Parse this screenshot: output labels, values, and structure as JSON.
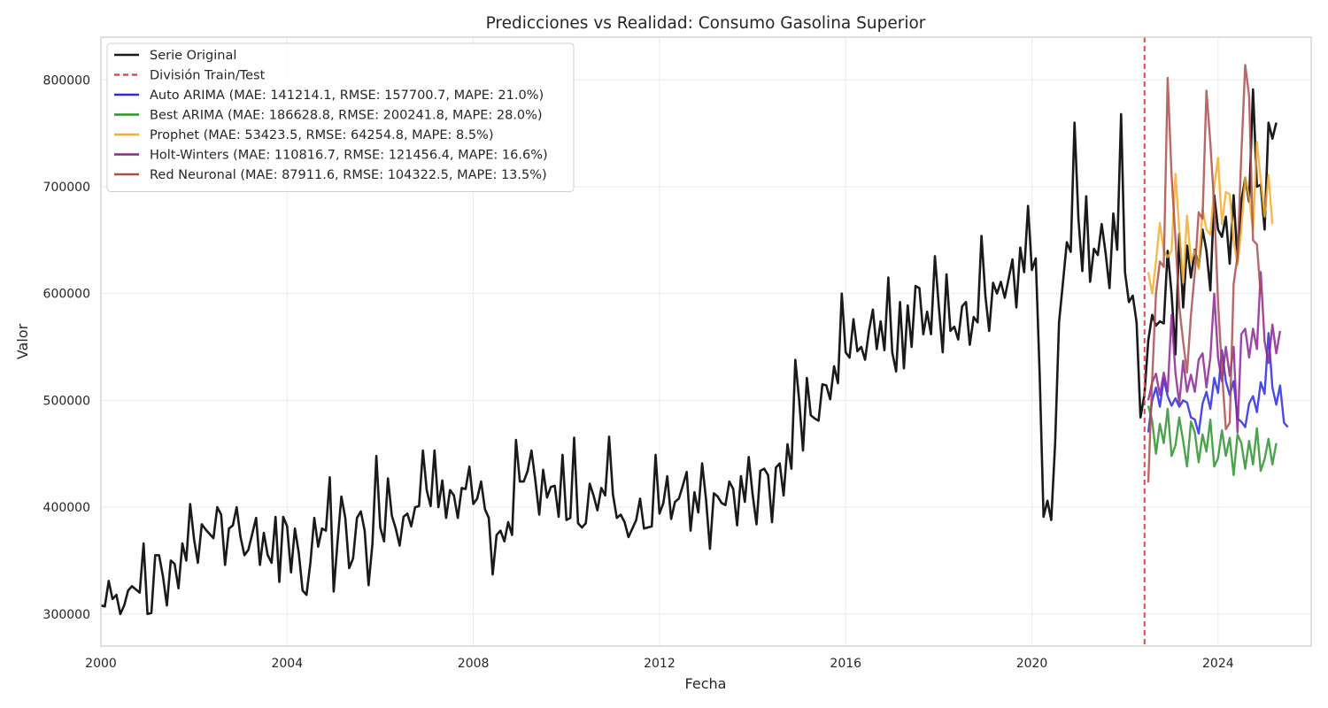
{
  "chart_data": {
    "type": "line",
    "title": "Predicciones vs Realidad: Consumo Gasolina Superior",
    "xlabel": "Fecha",
    "ylabel": "Valor",
    "xlim": [
      2000.0,
      2026.0
    ],
    "ylim": [
      270000,
      840000
    ],
    "x_ticks": [
      2000,
      2004,
      2008,
      2012,
      2016,
      2020,
      2024
    ],
    "y_ticks": [
      300000,
      400000,
      500000,
      600000,
      700000,
      800000
    ],
    "x_tick_labels": [
      "2000",
      "2004",
      "2008",
      "2012",
      "2016",
      "2020",
      "2024"
    ],
    "y_tick_labels": [
      "300000",
      "400000",
      "500000",
      "600000",
      "700000",
      "800000"
    ],
    "grid": true,
    "legend_position": "top-left",
    "split_line": {
      "label": "División Train/Test",
      "x": 2022.42,
      "color": "#e24a4a"
    },
    "series": [
      {
        "name": "Serie Original",
        "color": "#1a1a1a",
        "start": [
          2000,
          1
        ],
        "values": [
          308000,
          307000,
          331000,
          314000,
          318000,
          300000,
          308000,
          322000,
          326000,
          323000,
          320000,
          366000,
          300000,
          301000,
          355000,
          355000,
          335000,
          308000,
          350000,
          347000,
          324000,
          366000,
          350000,
          403000,
          370000,
          348000,
          384000,
          379000,
          375000,
          371000,
          400000,
          393000,
          346000,
          380000,
          383000,
          400000,
          372000,
          355000,
          360000,
          375000,
          390000,
          346000,
          376000,
          355000,
          348000,
          391000,
          330000,
          391000,
          382000,
          339000,
          380000,
          357000,
          322000,
          318000,
          348000,
          390000,
          363000,
          380000,
          378000,
          428000,
          321000,
          368000,
          410000,
          390000,
          343000,
          352000,
          390000,
          396000,
          378000,
          327000,
          366000,
          448000,
          381000,
          368000,
          427000,
          392000,
          380000,
          364000,
          391000,
          394000,
          382000,
          400000,
          401000,
          453000,
          416000,
          401000,
          453000,
          400000,
          425000,
          390000,
          416000,
          411000,
          390000,
          418000,
          417000,
          438000,
          403000,
          408000,
          424000,
          398000,
          390000,
          337000,
          374000,
          378000,
          368000,
          386000,
          374000,
          463000,
          424000,
          424000,
          434000,
          453000,
          425000,
          393000,
          435000,
          409000,
          419000,
          420000,
          391000,
          449000,
          388000,
          390000,
          465000,
          385000,
          381000,
          385000,
          422000,
          411000,
          397000,
          418000,
          411000,
          466000,
          412000,
          390000,
          393000,
          386000,
          372000,
          380000,
          388000,
          408000,
          380000,
          381000,
          382000,
          449000,
          394000,
          404000,
          429000,
          389000,
          405000,
          408000,
          420000,
          433000,
          378000,
          414000,
          395000,
          441000,
          407000,
          361000,
          413000,
          410000,
          404000,
          402000,
          424000,
          417000,
          383000,
          429000,
          405000,
          447000,
          412000,
          384000,
          434000,
          436000,
          430000,
          386000,
          437000,
          441000,
          411000,
          459000,
          436000,
          538000,
          500000,
          453000,
          521000,
          486000,
          483000,
          481000,
          515000,
          514000,
          501000,
          532000,
          516000,
          600000,
          545000,
          540000,
          576000,
          546000,
          550000,
          538000,
          565000,
          585000,
          548000,
          574000,
          547000,
          615000,
          545000,
          527000,
          592000,
          530000,
          589000,
          550000,
          607000,
          605000,
          562000,
          583000,
          562000,
          635000,
          588000,
          545000,
          618000,
          565000,
          569000,
          557000,
          588000,
          592000,
          552000,
          578000,
          573000,
          654000,
          598000,
          565000,
          610000,
          600000,
          611000,
          596000,
          614000,
          632000,
          587000,
          643000,
          620000,
          682000,
          622000,
          633000,
          525000,
          391000,
          406000,
          388000,
          460000,
          573000,
          610000,
          648000,
          639000,
          760000,
          670000,
          621000,
          691000,
          611000,
          642000,
          636000,
          665000,
          638000,
          605000,
          675000,
          641000,
          768000,
          620000,
          592000,
          598000,
          573000,
          484000,
          505000,
          556000,
          580000,
          570000,
          574000,
          572000,
          640000,
          600000,
          543000,
          656000,
          587000,
          645000,
          615000,
          641000,
          625000,
          660000,
          640000,
          603000,
          692000,
          660000,
          653000,
          672000,
          628000,
          692000,
          630000,
          686000,
          708000,
          686000,
          791000,
          700000,
          702000,
          660000,
          760000,
          745000,
          760000
        ]
      },
      {
        "name": "Auto ARIMA (MAE: 141214.1, RMSE: 157700.7, MAPE: 21.0%)",
        "color": "#2a2ae6",
        "start": [
          2022,
          7
        ],
        "values": [
          470000,
          500000,
          512000,
          494000,
          520000,
          504000,
          495000,
          502000,
          494000,
          500000,
          498000,
          484000,
          482000,
          469000,
          497000,
          508000,
          492000,
          521000,
          507000,
          547000,
          518000,
          505000,
          518000,
          483000,
          480000,
          475000,
          497000,
          504000,
          489000,
          517000,
          506000,
          563000,
          512000,
          496000,
          514000,
          479000,
          475000
        ]
      },
      {
        "name": "Best ARIMA (MAE: 186628.8, RMSE: 200241.8, MAPE: 28.0%)",
        "color": "#2c942c",
        "start": [
          2022,
          7
        ],
        "values": [
          495000,
          481000,
          450000,
          478000,
          460000,
          492000,
          448000,
          458000,
          484000,
          462000,
          438000,
          480000,
          470000,
          442000,
          468000,
          452000,
          482000,
          438000,
          446000,
          472000,
          448000,
          465000,
          430000,
          468000,
          460000,
          436000,
          462000,
          440000,
          474000,
          434000,
          445000,
          464000,
          440000,
          460000
        ]
      },
      {
        "name": "Prophet (MAE: 53423.5, RMSE: 64254.8, MAPE: 8.5%)",
        "color": "#f5ad30",
        "start": [
          2022,
          7
        ],
        "values": [
          620000,
          600000,
          630000,
          666000,
          640000,
          634000,
          640000,
          712000,
          660000,
          610000,
          673000,
          630000,
          640000,
          623000,
          679000,
          660000,
          655000,
          700000,
          727000,
          665000,
          695000,
          693000,
          650000,
          627000,
          660000,
          709000,
          690000,
          660000,
          742000,
          706000,
          672000,
          711000,
          665000
        ]
      },
      {
        "name": "Holt-Winters (MAE: 110816.7, RMSE: 121456.4, MAPE: 16.6%)",
        "color": "#8e2593",
        "start": [
          2022,
          7
        ],
        "values": [
          500000,
          517000,
          525000,
          505000,
          526000,
          508000,
          580000,
          526000,
          497000,
          537000,
          508000,
          524000,
          508000,
          538000,
          544000,
          512000,
          540000,
          600000,
          540000,
          518000,
          550000,
          523000,
          550000,
          470000,
          562000,
          567000,
          540000,
          567000,
          548000,
          620000,
          555000,
          535000,
          571000,
          544000,
          565000
        ]
      },
      {
        "name": "Red Neuronal (MAE: 87911.6, RMSE: 104322.5, MAPE: 13.5%)",
        "color": "#ad4c4c",
        "start": [
          2022,
          7
        ],
        "values": [
          423000,
          519000,
          600000,
          630000,
          625000,
          802000,
          711000,
          651000,
          588000,
          555000,
          526000,
          580000,
          620000,
          676000,
          670000,
          790000,
          741000,
          682000,
          592000,
          528000,
          473000,
          479000,
          609000,
          635000,
          730000,
          814000,
          785000,
          650000,
          646000,
          599000
        ]
      }
    ]
  }
}
